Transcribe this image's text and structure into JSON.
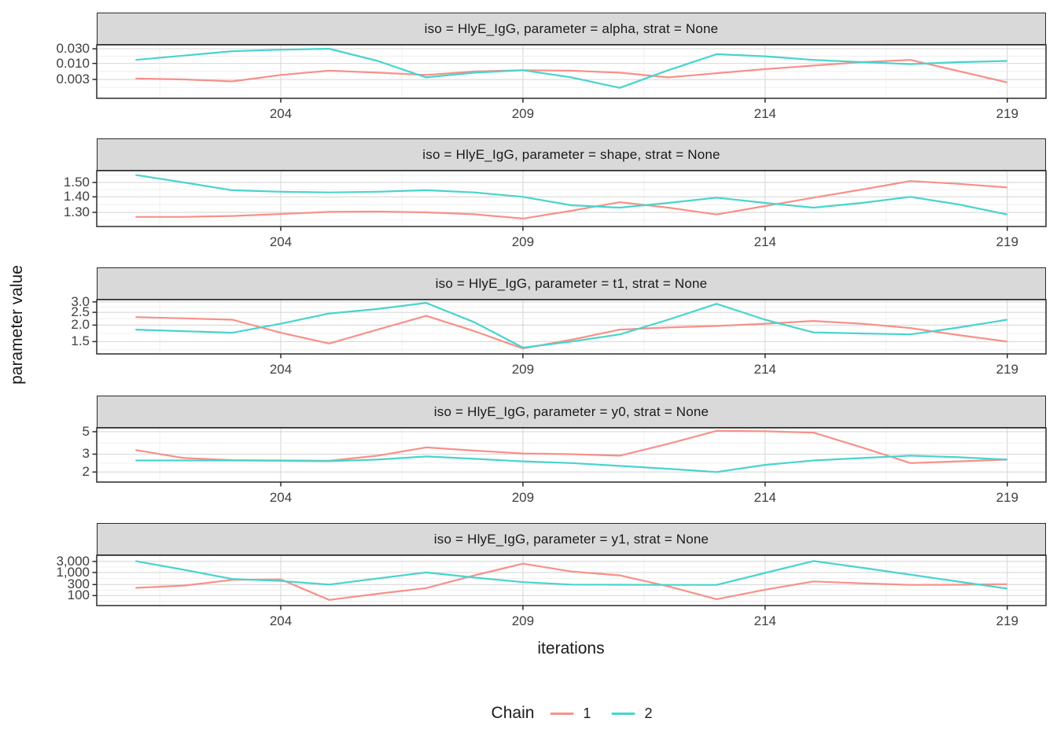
{
  "chart_data": {
    "type": "line",
    "xlabel": "iterations",
    "ylabel": "parameter value",
    "x": [
      201,
      202,
      203,
      204,
      205,
      206,
      207,
      208,
      209,
      210,
      211,
      212,
      213,
      214,
      215,
      216,
      217,
      218,
      219
    ],
    "x_ticks": [
      204,
      209,
      214,
      219
    ],
    "x_minor_ticks": [
      201.5,
      206.5,
      211.5,
      216.5
    ],
    "xlim": [
      200.2,
      219.8
    ],
    "grid": "major-and-minor",
    "legend": {
      "title": "Chain",
      "position": "bottom",
      "entries": [
        "1",
        "2"
      ]
    },
    "colors": {
      "chain_1": "#F79189",
      "chain_2": "#48D4CE",
      "strip_background": "#D9D9D9",
      "panel_background": "#FFFFFF",
      "panel_border": "#2B2B2B",
      "grid_major": "#D8D8D8",
      "grid_minor": "#ECECEC",
      "axis_text": "#404040"
    },
    "facets": [
      {
        "title": "iso = HlyE_IgG, parameter = alpha, strat = None",
        "y_scale": "log10",
        "y_tick_labels": [
          "0.030",
          "0.010",
          "0.003"
        ],
        "y_tick_values": [
          0.03,
          0.01,
          0.003
        ],
        "ylim": [
          0.00073,
          0.0403
        ],
        "series": [
          {
            "name": "1",
            "values": [
              0.0032,
              0.003,
              0.0026,
              0.0042,
              0.0058,
              0.005,
              0.0042,
              0.0055,
              0.006,
              0.0058,
              0.005,
              0.0035,
              0.0048,
              0.0065,
              0.0085,
              0.011,
              0.013,
              0.0056,
              0.0024
            ]
          },
          {
            "name": "2",
            "values": [
              0.013,
              0.018,
              0.025,
              0.028,
              0.03,
              0.012,
              0.0035,
              0.005,
              0.006,
              0.0035,
              0.0016,
              0.006,
              0.02,
              0.017,
              0.013,
              0.011,
              0.0095,
              0.011,
              0.012
            ]
          }
        ]
      },
      {
        "title": "iso = HlyE_IgG, parameter = shape, strat = None",
        "y_scale": "log10",
        "y_tick_labels": [
          "1.50",
          "1.40",
          "1.30"
        ],
        "y_tick_values": [
          1.5,
          1.4,
          1.3
        ],
        "ylim": [
          1.215,
          1.587
        ],
        "series": [
          {
            "name": "1",
            "values": [
              1.272,
              1.272,
              1.278,
              1.29,
              1.303,
              1.305,
              1.3,
              1.288,
              1.262,
              1.31,
              1.365,
              1.33,
              1.287,
              1.34,
              1.395,
              1.45,
              1.51,
              1.49,
              1.465
            ]
          },
          {
            "name": "2",
            "values": [
              1.555,
              1.5,
              1.445,
              1.435,
              1.43,
              1.435,
              1.445,
              1.43,
              1.4,
              1.345,
              1.33,
              1.36,
              1.395,
              1.36,
              1.33,
              1.36,
              1.4,
              1.35,
              1.287
            ]
          }
        ]
      },
      {
        "title": "iso = HlyE_IgG, parameter = t1, strat = None",
        "y_scale": "log10",
        "y_tick_labels": [
          "3.0",
          "2.5",
          "2.0",
          "1.5"
        ],
        "y_tick_values": [
          3.0,
          2.5,
          2.0,
          1.5
        ],
        "ylim": [
          1.21,
          3.12
        ],
        "series": [
          {
            "name": "1",
            "values": [
              2.3,
              2.25,
              2.2,
              1.75,
              1.45,
              1.85,
              2.35,
              1.8,
              1.33,
              1.55,
              1.85,
              1.92,
              1.97,
              2.05,
              2.15,
              2.05,
              1.9,
              1.68,
              1.5
            ]
          },
          {
            "name": "2",
            "values": [
              1.85,
              1.8,
              1.75,
              2.05,
              2.45,
              2.65,
              2.95,
              2.1,
              1.35,
              1.5,
              1.7,
              2.2,
              2.9,
              2.2,
              1.76,
              1.73,
              1.7,
              1.92,
              2.2
            ]
          }
        ]
      },
      {
        "title": "iso = HlyE_IgG, parameter = y0, strat = None",
        "y_scale": "log10",
        "y_tick_labels": [
          "5",
          "3",
          "2"
        ],
        "y_tick_values": [
          5,
          3,
          2
        ],
        "ylim": [
          1.59,
          5.46
        ],
        "series": [
          {
            "name": "1",
            "values": [
              3.3,
              2.75,
              2.62,
              2.6,
              2.58,
              2.9,
              3.5,
              3.25,
              3.05,
              3.0,
              2.9,
              3.8,
              5.1,
              5.05,
              4.9,
              3.5,
              2.45,
              2.55,
              2.65
            ]
          },
          {
            "name": "2",
            "values": [
              2.6,
              2.6,
              2.6,
              2.58,
              2.56,
              2.65,
              2.85,
              2.7,
              2.55,
              2.45,
              2.3,
              2.15,
              2.0,
              2.35,
              2.6,
              2.75,
              2.9,
              2.8,
              2.65
            ]
          }
        ]
      },
      {
        "title": "iso = HlyE_IgG, parameter = y1, strat = None",
        "y_scale": "log10",
        "y_tick_labels": [
          "3,000",
          "1,000",
          "300",
          "100"
        ],
        "y_tick_values": [
          3000,
          1000,
          300,
          100
        ],
        "ylim": [
          37,
          5550
        ],
        "series": [
          {
            "name": "1",
            "values": [
              215,
              270,
              480,
              500,
              65,
              120,
              210,
              750,
              2400,
              1100,
              750,
              250,
              70,
              180,
              410,
              340,
              290,
              295,
              310
            ]
          },
          {
            "name": "2",
            "values": [
              3100,
              1300,
              520,
              430,
              300,
              550,
              1000,
              600,
              380,
              300,
              295,
              290,
              290,
              950,
              3100,
              1600,
              800,
              400,
              200
            ]
          }
        ]
      }
    ]
  }
}
